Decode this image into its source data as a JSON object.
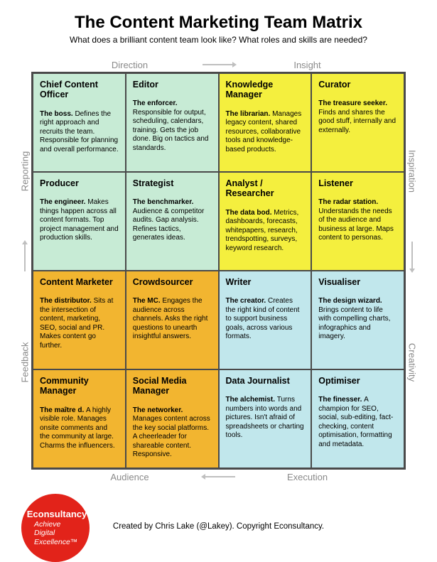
{
  "title": "The Content Marketing Team Matrix",
  "subtitle": "What does a brilliant content team look like? What roles and skills are needed?",
  "axes": {
    "top_left": "Direction",
    "top_right": "Insight",
    "bottom_left": "Audience",
    "bottom_right": "Execution",
    "left_upper": "Reporting",
    "left_lower": "Feedback",
    "right_upper": "Inspiration",
    "right_lower": "Creativity"
  },
  "quadrant_colors": {
    "top_left": "#c7ebd5",
    "top_right": "#f4ef3e",
    "bottom_left": "#f2b530",
    "bottom_right": "#c1e7ec"
  },
  "border_color": "#4a4a4a",
  "axis_label_color": "#8a8a8a",
  "cells": [
    {
      "role": "Chief Content Officer",
      "tag": "The boss.",
      "desc": "Defines the right approach and recruits the team. Responsible for planning and overall performance."
    },
    {
      "role": "Editor",
      "tag": "The enforcer.",
      "desc": "Responsible for output, scheduling, calendars, training. Gets the job done. Big on tactics and standards."
    },
    {
      "role": "Knowledge Manager",
      "tag": "The librarian.",
      "desc": "Manages legacy content, shared resources, collaborative tools and knowledge-based products."
    },
    {
      "role": "Curator",
      "tag": "The treasure seeker.",
      "desc": "Finds and shares the good stuff, internally and externally."
    },
    {
      "role": "Producer",
      "tag": "The engineer.",
      "desc": "Makes things happen across all content formats. Top project management and production skills."
    },
    {
      "role": "Strategist",
      "tag": "The benchmarker.",
      "desc": "Audience & competitor audits. Gap analysis. Refines tactics, generates ideas."
    },
    {
      "role": "Analyst / Researcher",
      "tag": "The data bod.",
      "desc": "Metrics, dashboards, forecasts, whitepapers, research, trendspotting, surveys, keyword research."
    },
    {
      "role": "Listener",
      "tag": "The radar station.",
      "desc": "Understands the needs of the audience and business at large. Maps content to personas."
    },
    {
      "role": "Content Marketer",
      "tag": "The distributor.",
      "desc": "Sits at the intersection of content, marketing, SEO, social and PR. Makes content go further."
    },
    {
      "role": "Crowdsourcer",
      "tag": "The MC.",
      "desc": "Engages the audience across channels. Asks the right questions to unearth insightful answers."
    },
    {
      "role": "Writer",
      "tag": "The creator.",
      "desc": "Creates the right kind of content to support business goals, across various formats."
    },
    {
      "role": "Visualiser",
      "tag": "The design wizard.",
      "desc": "Brings content to life with compelling charts, infographics and imagery."
    },
    {
      "role": "Community Manager",
      "tag": "The maître d.",
      "desc": "A highly visible role. Manages onsite comments and the community at large. Charms the influencers."
    },
    {
      "role": "Social Media Manager",
      "tag": "The networker.",
      "desc": "Manages content across the key social platforms. A cheerleader for shareable content. Responsive."
    },
    {
      "role": "Data Journalist",
      "tag": "The alchemist.",
      "desc": "Turns numbers into words and pictures. Isn't afraid of spreadsheets or charting tools."
    },
    {
      "role": "Optimiser",
      "tag": "The finesser.",
      "desc": "A champion for SEO, social, sub-editing, fact-checking, content optimisation, formatting and metadata."
    }
  ],
  "badge": {
    "bg": "#e2231a",
    "line1": "Econsultancy",
    "line2": "Achieve",
    "line3": "Digital",
    "line4": "Excellence™"
  },
  "credit": "Created by Chris Lake (@Lakey). Copyright Econsultancy."
}
